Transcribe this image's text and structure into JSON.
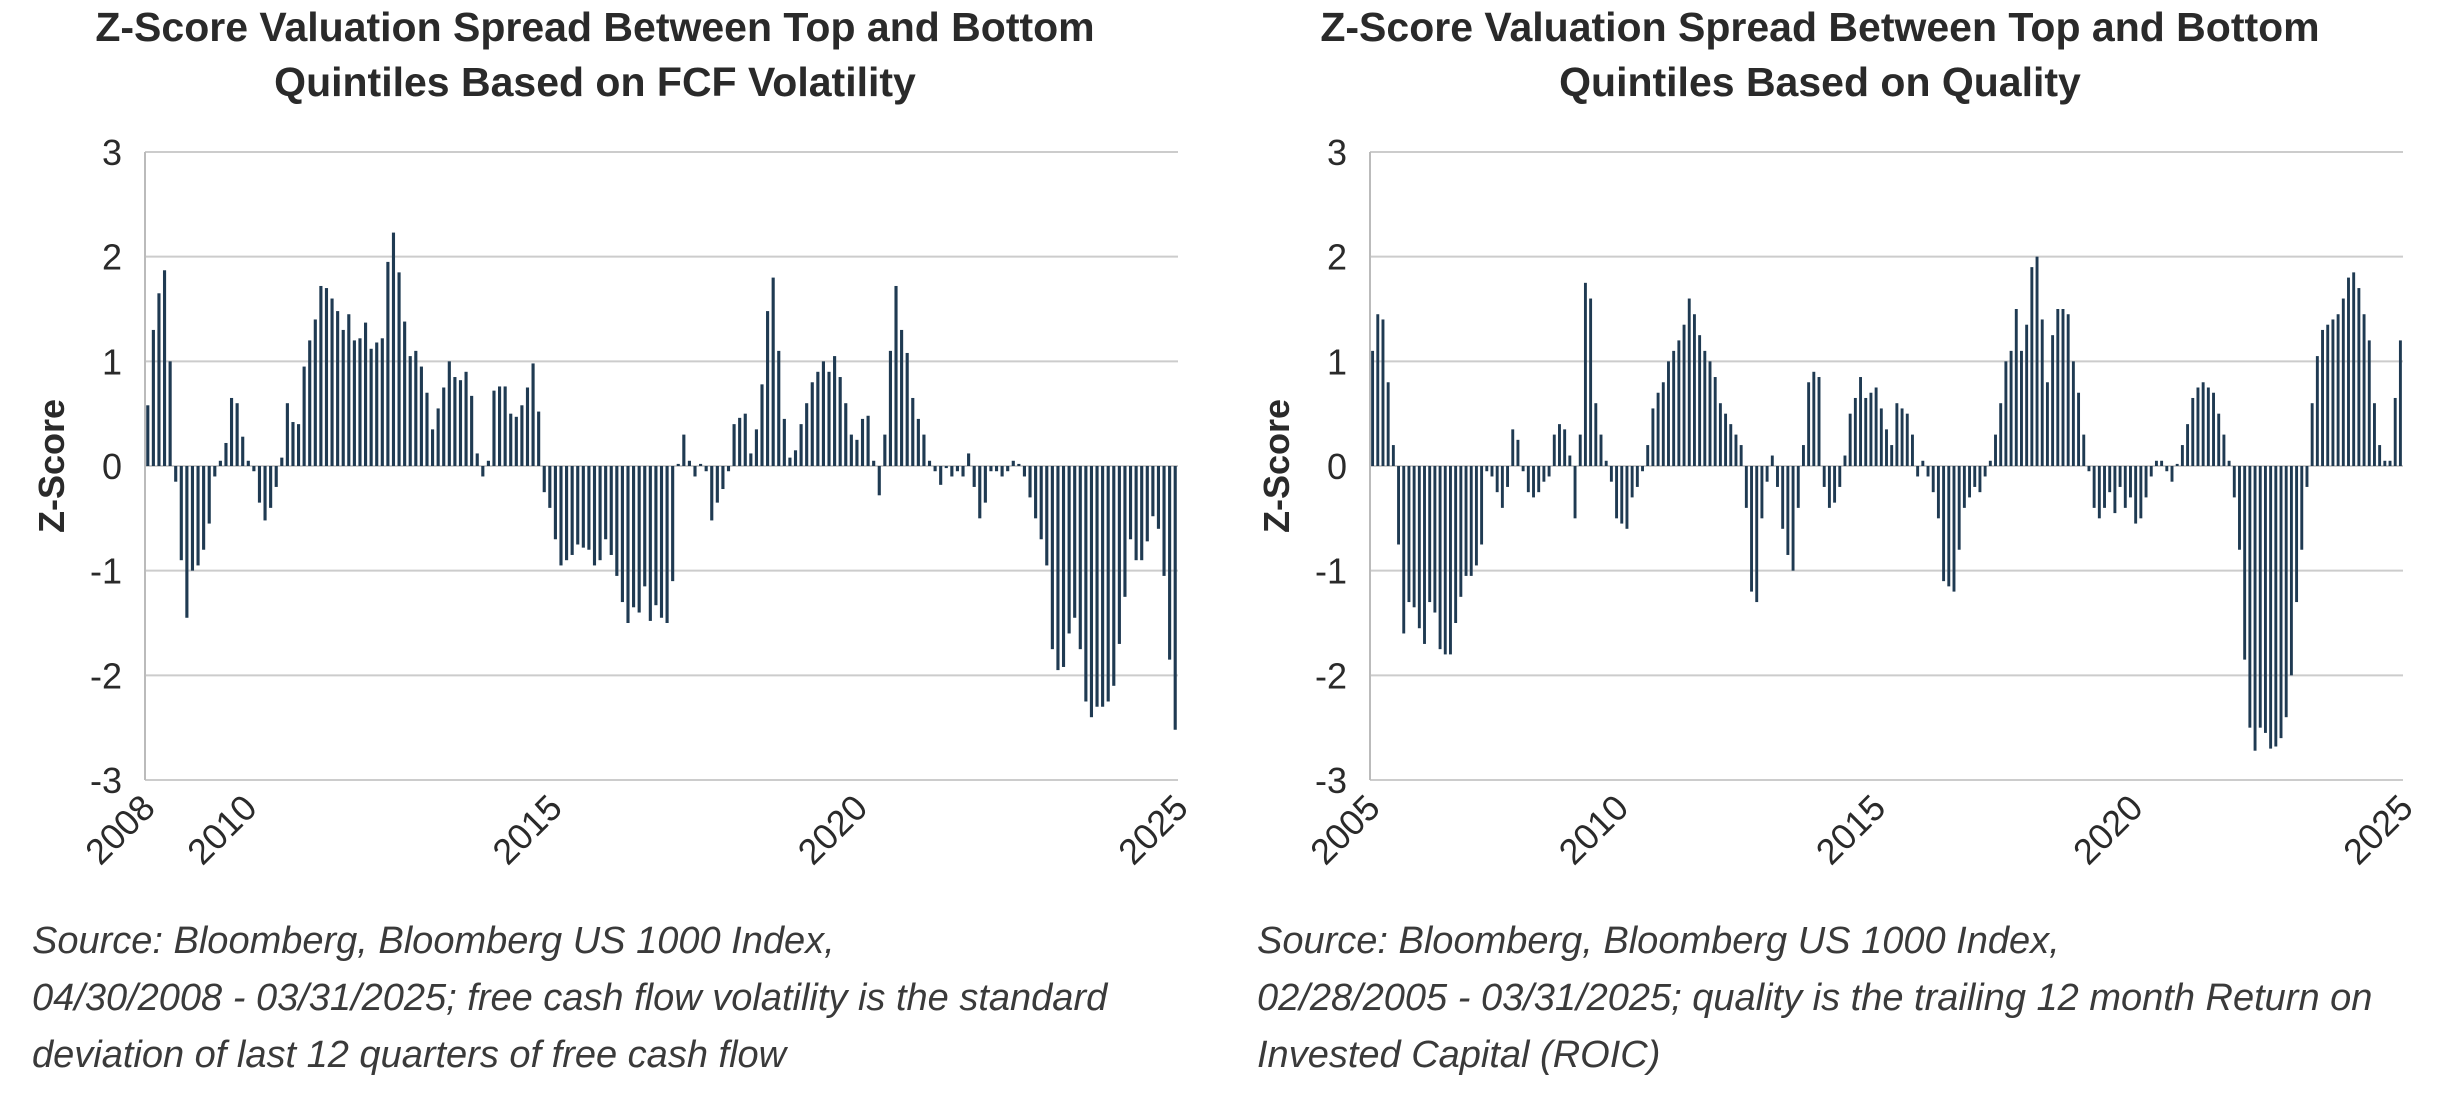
{
  "colors": {
    "bar": "#1f3a52",
    "grid": "#cccccc",
    "axis": "#bbbbbb",
    "text": "#2a2a2a"
  },
  "chart_data": [
    {
      "type": "bar",
      "title_lines": [
        "Z-Score Valuation Spread Between Top and Bottom",
        "Quintiles Based on FCF Volatility"
      ],
      "ylabel": "Z-Score",
      "ylim": [
        -3,
        3
      ],
      "yticks": [
        "3",
        "2",
        "1",
        "0",
        "-1",
        "-2",
        "-3"
      ],
      "xlim": [
        2008.33,
        2025.25
      ],
      "xticks": [
        {
          "value": 2008.33,
          "label": "2008"
        },
        {
          "value": 2010,
          "label": "2010"
        },
        {
          "value": 2015,
          "label": "2015"
        },
        {
          "value": 2020,
          "label": "2020"
        },
        {
          "value": 2025.25,
          "label": "2025"
        }
      ],
      "start": "2008-04",
      "frequency": "monthly",
      "values": [
        0.58,
        1.3,
        1.65,
        1.87,
        1.0,
        -0.15,
        -0.9,
        -1.45,
        -1.0,
        -0.95,
        -0.8,
        -0.55,
        -0.1,
        0.05,
        0.22,
        0.65,
        0.6,
        0.28,
        0.05,
        -0.05,
        -0.35,
        -0.52,
        -0.4,
        -0.2,
        0.08,
        0.6,
        0.42,
        0.4,
        0.95,
        1.2,
        1.4,
        1.72,
        1.7,
        1.6,
        1.48,
        1.3,
        1.45,
        1.2,
        1.22,
        1.37,
        1.12,
        1.18,
        1.22,
        1.95,
        2.23,
        1.85,
        1.38,
        1.05,
        1.1,
        0.95,
        0.7,
        0.35,
        0.55,
        0.75,
        1.0,
        0.85,
        0.82,
        0.9,
        0.67,
        0.12,
        -0.1,
        0.05,
        0.72,
        0.76,
        0.76,
        0.5,
        0.47,
        0.58,
        0.75,
        0.98,
        0.52,
        -0.25,
        -0.4,
        -0.7,
        -0.95,
        -0.9,
        -0.85,
        -0.75,
        -0.78,
        -0.8,
        -0.95,
        -0.9,
        -0.7,
        -0.85,
        -1.05,
        -1.3,
        -1.5,
        -1.35,
        -1.4,
        -1.15,
        -1.48,
        -1.33,
        -1.45,
        -1.5,
        -1.1,
        0.02,
        0.3,
        0.05,
        -0.1,
        0.02,
        -0.05,
        -0.52,
        -0.35,
        -0.22,
        -0.05,
        0.4,
        0.46,
        0.5,
        0.12,
        0.35,
        0.78,
        1.48,
        1.8,
        1.1,
        0.45,
        0.08,
        0.15,
        0.4,
        0.6,
        0.8,
        0.9,
        1.0,
        0.9,
        1.05,
        0.85,
        0.6,
        0.3,
        0.25,
        0.45,
        0.48,
        0.05,
        -0.28,
        0.3,
        1.1,
        1.72,
        1.3,
        1.08,
        0.65,
        0.45,
        0.3,
        0.05,
        -0.05,
        -0.18,
        -0.02,
        -0.1,
        -0.05,
        -0.1,
        0.12,
        -0.2,
        -0.5,
        -0.35,
        -0.05,
        -0.05,
        -0.1,
        -0.05,
        0.05,
        0.02,
        -0.1,
        -0.3,
        -0.5,
        -0.7,
        -0.95,
        -1.75,
        -1.95,
        -1.92,
        -1.6,
        -1.45,
        -1.75,
        -2.25,
        -2.4,
        -2.3,
        -2.3,
        -2.25,
        -2.1,
        -1.7,
        -1.25,
        -0.7,
        -0.9,
        -0.9,
        -0.72,
        -0.48,
        -0.6,
        -1.05,
        -1.85,
        -2.52
      ]
    },
    {
      "type": "bar",
      "title_lines": [
        "Z-Score Valuation Spread Between Top and Bottom",
        "Quintiles Based on Quality"
      ],
      "ylabel": "Z-Score",
      "ylim": [
        -3,
        3
      ],
      "yticks": [
        "3",
        "2",
        "1",
        "0",
        "-1",
        "-2",
        "-3"
      ],
      "xlim": [
        2005.17,
        2025.25
      ],
      "xticks": [
        {
          "value": 2005.17,
          "label": "2005"
        },
        {
          "value": 2010,
          "label": "2010"
        },
        {
          "value": 2015,
          "label": "2015"
        },
        {
          "value": 2020,
          "label": "2020"
        },
        {
          "value": 2025.25,
          "label": "2025"
        }
      ],
      "start": "2005-03",
      "frequency": "monthly",
      "values": [
        1.1,
        1.45,
        1.4,
        0.8,
        0.2,
        -0.75,
        -1.6,
        -1.3,
        -1.35,
        -1.55,
        -1.7,
        -1.3,
        -1.4,
        -1.75,
        -1.8,
        -1.8,
        -1.5,
        -1.25,
        -1.05,
        -1.05,
        -0.95,
        -0.75,
        -0.05,
        -0.1,
        -0.25,
        -0.4,
        -0.2,
        0.35,
        0.25,
        -0.05,
        -0.25,
        -0.3,
        -0.25,
        -0.15,
        -0.1,
        0.3,
        0.4,
        0.35,
        0.1,
        -0.5,
        0.3,
        1.75,
        1.6,
        0.6,
        0.3,
        0.05,
        -0.15,
        -0.5,
        -0.55,
        -0.6,
        -0.3,
        -0.2,
        -0.05,
        0.2,
        0.55,
        0.7,
        0.8,
        1.0,
        1.1,
        1.2,
        1.35,
        1.6,
        1.45,
        1.25,
        1.1,
        1.0,
        0.85,
        0.6,
        0.5,
        0.4,
        0.3,
        0.2,
        -0.4,
        -1.2,
        -1.3,
        -0.5,
        -0.15,
        0.1,
        -0.2,
        -0.6,
        -0.85,
        -1.0,
        -0.4,
        0.2,
        0.8,
        0.9,
        0.85,
        -0.2,
        -0.4,
        -0.35,
        -0.2,
        0.1,
        0.5,
        0.65,
        0.85,
        0.65,
        0.7,
        0.75,
        0.55,
        0.35,
        0.2,
        0.6,
        0.55,
        0.5,
        0.3,
        -0.1,
        0.05,
        -0.1,
        -0.25,
        -0.5,
        -1.1,
        -1.15,
        -1.2,
        -0.8,
        -0.4,
        -0.3,
        -0.2,
        -0.25,
        -0.1,
        0.05,
        0.3,
        0.6,
        1.0,
        1.1,
        1.5,
        1.1,
        1.35,
        1.9,
        2.0,
        1.4,
        0.8,
        1.25,
        1.5,
        1.5,
        1.45,
        1.0,
        0.7,
        0.3,
        -0.05,
        -0.4,
        -0.5,
        -0.4,
        -0.25,
        -0.45,
        -0.2,
        -0.4,
        -0.3,
        -0.55,
        -0.5,
        -0.3,
        -0.1,
        0.05,
        0.05,
        -0.05,
        -0.15,
        0.02,
        0.2,
        0.4,
        0.65,
        0.75,
        0.8,
        0.75,
        0.7,
        0.5,
        0.3,
        0.05,
        -0.3,
        -0.8,
        -1.85,
        -2.5,
        -2.72,
        -2.5,
        -2.55,
        -2.7,
        -2.68,
        -2.6,
        -2.4,
        -2.0,
        -1.3,
        -0.8,
        -0.2,
        0.6,
        1.05,
        1.3,
        1.35,
        1.4,
        1.45,
        1.6,
        1.8,
        1.85,
        1.7,
        1.45,
        1.2,
        0.6,
        0.2,
        0.05,
        0.05,
        0.65,
        1.2
      ]
    }
  ],
  "sources": [
    [
      "Source: Bloomberg, Bloomberg US 1000 Index,",
      "04/30/2008 - 03/31/2025; free cash flow volatility is the standard",
      "deviation of last 12 quarters of free cash flow"
    ],
    [
      "Source: Bloomberg, Bloomberg US 1000 Index,",
      "02/28/2005 - 03/31/2025; quality is the trailing 12 month Return on",
      "Invested Capital (ROIC)"
    ]
  ]
}
